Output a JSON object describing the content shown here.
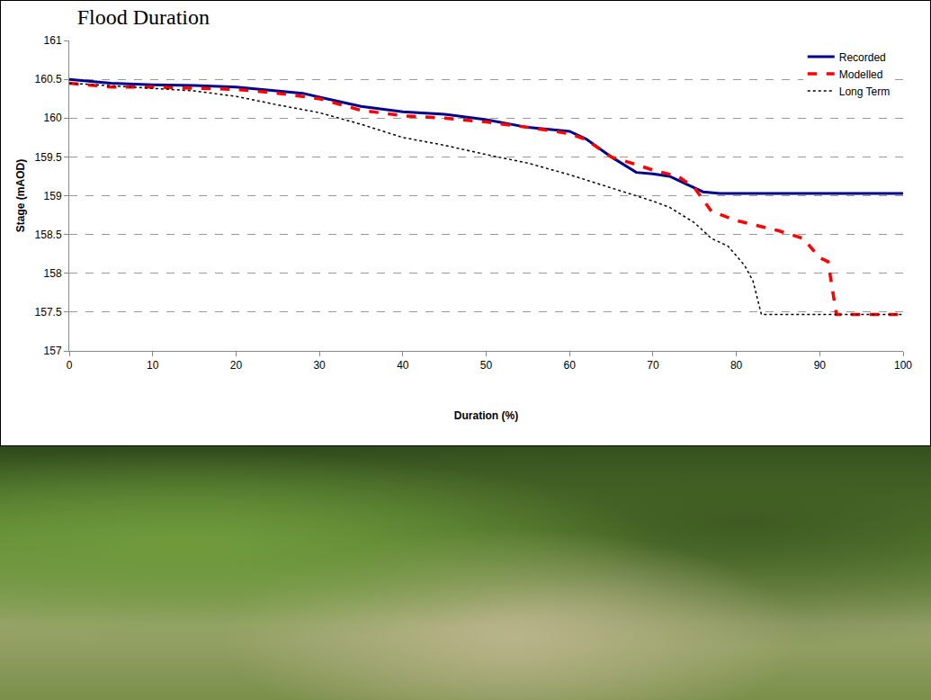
{
  "chart_data": {
    "type": "line",
    "title": "Flood Duration",
    "x_label": "Duration (%)",
    "y_label": "Stage (mAOD)",
    "xlim": [
      0,
      100
    ],
    "xticks": [
      0,
      10,
      20,
      30,
      40,
      50,
      60,
      70,
      80,
      90,
      100
    ],
    "ylim": [
      157,
      161
    ],
    "yticks": [
      157,
      157.5,
      158,
      158.5,
      159,
      159.5,
      160,
      160.5,
      161
    ],
    "grid": true,
    "legend": "top-right",
    "series": [
      {
        "name": "Recorded",
        "color": "#00008b",
        "line_style": "solid",
        "x": [
          0,
          5,
          10,
          15,
          20,
          25,
          28,
          30,
          35,
          40,
          45,
          50,
          55,
          60,
          62,
          65,
          68,
          70,
          72,
          74,
          76,
          78,
          100
        ],
        "values": [
          160.5,
          160.45,
          160.43,
          160.42,
          160.4,
          160.35,
          160.32,
          160.27,
          160.15,
          160.08,
          160.05,
          159.98,
          159.88,
          159.83,
          159.73,
          159.5,
          159.3,
          159.28,
          159.25,
          159.15,
          159.05,
          159.03,
          159.03
        ]
      },
      {
        "name": "Modelled",
        "color": "#ff0000",
        "line_style": "dashed",
        "x": [
          0,
          5,
          10,
          15,
          20,
          25,
          30,
          35,
          40,
          45,
          50,
          55,
          60,
          62,
          65,
          68,
          70,
          73,
          75,
          77,
          80,
          85,
          88,
          90,
          91,
          92,
          100
        ],
        "values": [
          160.45,
          160.4,
          160.4,
          160.38,
          160.37,
          160.32,
          160.25,
          160.1,
          160.03,
          160.0,
          159.95,
          159.88,
          159.8,
          159.72,
          159.5,
          159.4,
          159.33,
          159.25,
          159.1,
          158.8,
          158.68,
          158.55,
          158.45,
          158.2,
          158.15,
          157.47,
          157.47
        ]
      },
      {
        "name": "Long Term",
        "color": "#000000",
        "line_style": "dotted",
        "x": [
          0,
          10,
          15,
          20,
          25,
          30,
          35,
          40,
          45,
          50,
          55,
          60,
          65,
          70,
          72,
          75,
          77,
          79,
          81,
          82,
          83,
          100
        ],
        "values": [
          160.45,
          160.38,
          160.35,
          160.28,
          160.17,
          160.07,
          159.92,
          159.75,
          159.65,
          159.53,
          159.42,
          159.27,
          159.1,
          158.93,
          158.85,
          158.65,
          158.45,
          158.35,
          158.1,
          157.9,
          157.47,
          157.47
        ]
      }
    ]
  }
}
